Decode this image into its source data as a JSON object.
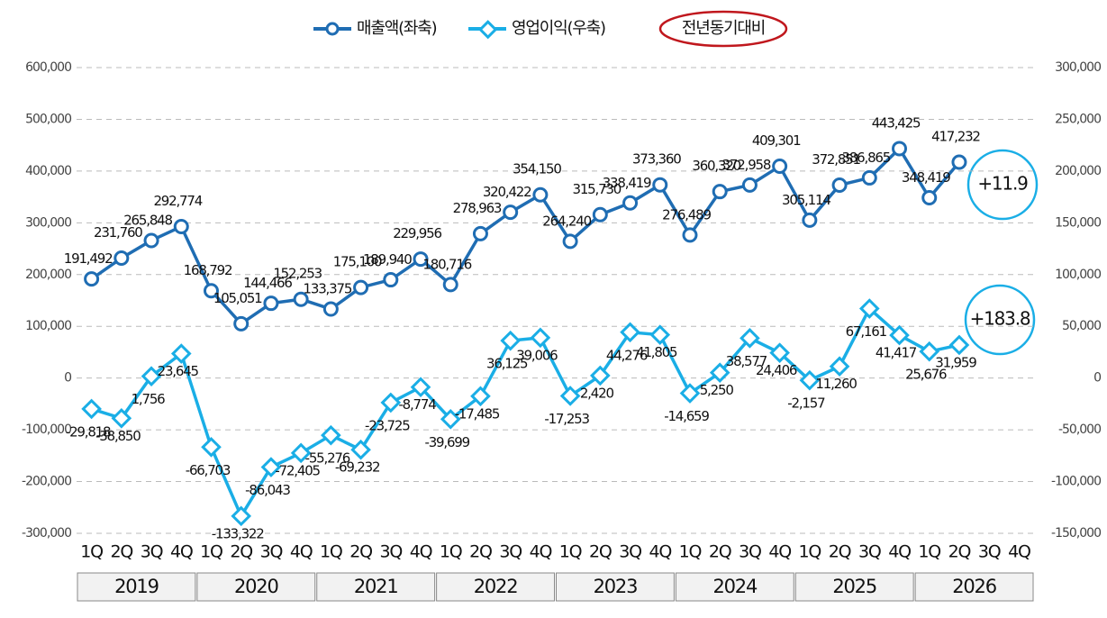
{
  "chart_data": {
    "type": "line",
    "categories": [
      "1Q",
      "2Q",
      "3Q",
      "4Q",
      "1Q",
      "2Q",
      "3Q",
      "4Q",
      "1Q",
      "2Q",
      "3Q",
      "4Q",
      "1Q",
      "2Q",
      "3Q",
      "4Q",
      "1Q",
      "2Q",
      "3Q",
      "4Q",
      "1Q",
      "2Q",
      "3Q",
      "4Q",
      "1Q",
      "2Q",
      "3Q",
      "4Q",
      "1Q",
      "2Q",
      "3Q",
      "4Q"
    ],
    "years": [
      "2019",
      "2020",
      "2021",
      "2022",
      "2023",
      "2024",
      "2025",
      "2026"
    ],
    "series": [
      {
        "name": "매출액(좌축)",
        "color": "#1f6db3",
        "marker": "circle",
        "values": [
          191492,
          231760,
          265848,
          292774,
          168792,
          105051,
          144466,
          152253,
          133375,
          175100,
          189940,
          229956,
          180716,
          278963,
          320422,
          354150,
          264240,
          315730,
          338419,
          373360,
          276489,
          360320,
          372958,
          409301,
          305114,
          372851,
          386865,
          443425,
          348419,
          417232,
          null,
          null
        ],
        "value_labels": [
          "191,492",
          "231,760",
          "265,848",
          "292,774",
          "168,792",
          "105,051",
          "144,466",
          "152,253",
          "133,375",
          "175,100",
          "189,940",
          "229,956",
          "180,716",
          "278,963",
          "320,422",
          "354,150",
          "264,240",
          "315,730",
          "338,419",
          "373,360",
          "276,489",
          "360,320",
          "372,958",
          "409,301",
          "305,114",
          "372,851",
          "386,865",
          "443,425",
          "348,419",
          "417,232",
          null,
          null
        ]
      },
      {
        "name": "영업이익(우축)",
        "color": "#1aaee6",
        "marker": "diamond",
        "axis": "y2",
        "values": [
          -29818,
          -38850,
          1756,
          23645,
          -66703,
          -133322,
          -86043,
          -72405,
          -55276,
          -69232,
          -23725,
          -8774,
          -39699,
          -17485,
          36125,
          39006,
          -17253,
          2420,
          44276,
          41805,
          -14659,
          5250,
          38577,
          24406,
          -2157,
          11260,
          67161,
          41417,
          25676,
          31959,
          null,
          null
        ],
        "value_labels": [
          "-29,818",
          "-38,850",
          "1,756",
          "23,645",
          "-66,703",
          "-133,322",
          "-86,043",
          "-72,405",
          "-55,276",
          "-69,232",
          "-23,725",
          "-8,774",
          "-39,699",
          "-17,485",
          "36,125",
          "39,006",
          "-17,253",
          "2,420",
          "44,276",
          "41,805",
          "-14,659",
          "5,250",
          "38,577",
          "24,406",
          "-2,157",
          "11,260",
          "67,161",
          "41,417",
          "25,676",
          "31,959",
          null,
          null
        ]
      }
    ],
    "ylim": [
      -300000,
      600000
    ],
    "yticks": [
      {
        "value": -300000,
        "label": "-300,000"
      },
      {
        "value": -200000,
        "label": "-200,000"
      },
      {
        "value": -100000,
        "label": "-100,000"
      },
      0,
      {
        "value": 100000,
        "label": "100,000"
      },
      {
        "value": 200000,
        "label": "200,000"
      },
      {
        "value": 300000,
        "label": "300,000"
      },
      {
        "value": 400000,
        "label": "400,000"
      },
      {
        "value": 500000,
        "label": "500,000"
      },
      {
        "value": 600000,
        "label": "600,000"
      }
    ],
    "y2lim": [
      -150000,
      300000
    ],
    "y2ticks": [
      {
        "value": -150000,
        "label": "-150,000"
      },
      {
        "value": -100000,
        "label": "-100,000"
      },
      {
        "value": -50000,
        "label": "-50,000"
      },
      0,
      {
        "value": 50000,
        "label": "50,000"
      },
      {
        "value": 100000,
        "label": "100,000"
      },
      {
        "value": 150000,
        "label": "150,000"
      },
      {
        "value": 200000,
        "label": "200,000"
      },
      {
        "value": 250000,
        "label": "250,000"
      },
      {
        "value": 300000,
        "label": "300,000"
      }
    ],
    "grid": true,
    "legend_note": "전년동기대비",
    "annotations": [
      "+11.9",
      "+183.8"
    ]
  }
}
